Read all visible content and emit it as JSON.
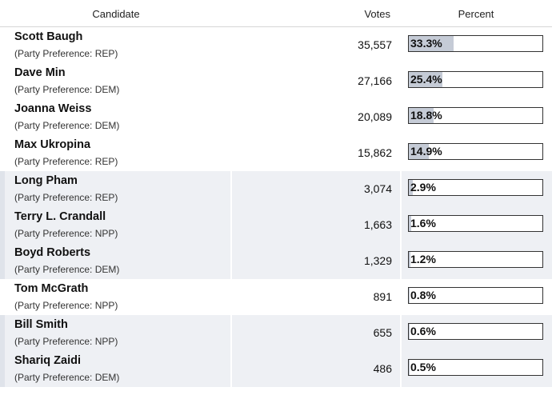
{
  "columns": {
    "candidate": "Candidate",
    "votes": "Votes",
    "percent": "Percent"
  },
  "rows": [
    {
      "name": "Scott Baugh",
      "party": "(Party Preference: REP)",
      "votes": "35,557",
      "percent": "33.3%",
      "share": 33.3,
      "shaded": false
    },
    {
      "name": "Dave Min",
      "party": "(Party Preference: DEM)",
      "votes": "27,166",
      "percent": "25.4%",
      "share": 25.4,
      "shaded": false
    },
    {
      "name": "Joanna Weiss",
      "party": "(Party Preference: DEM)",
      "votes": "20,089",
      "percent": "18.8%",
      "share": 18.8,
      "shaded": false
    },
    {
      "name": "Max Ukropina",
      "party": "(Party Preference: REP)",
      "votes": "15,862",
      "percent": "14.9%",
      "share": 14.9,
      "shaded": false
    },
    {
      "name": "Long Pham",
      "party": "(Party Preference: REP)",
      "votes": "3,074",
      "percent": "2.9%",
      "share": 2.9,
      "shaded": true
    },
    {
      "name": "Terry L. Crandall",
      "party": "(Party Preference: NPP)",
      "votes": "1,663",
      "percent": "1.6%",
      "share": 1.6,
      "shaded": true
    },
    {
      "name": "Boyd Roberts",
      "party": "(Party Preference: DEM)",
      "votes": "1,329",
      "percent": "1.2%",
      "share": 1.2,
      "shaded": true
    },
    {
      "name": "Tom McGrath",
      "party": "(Party Preference: NPP)",
      "votes": "891",
      "percent": "0.8%",
      "share": 0.8,
      "shaded": false
    },
    {
      "name": "Bill Smith",
      "party": "(Party Preference: NPP)",
      "votes": "655",
      "percent": "0.6%",
      "share": 0.6,
      "shaded": true
    },
    {
      "name": "Shariq Zaidi",
      "party": "(Party Preference: DEM)",
      "votes": "486",
      "percent": "0.5%",
      "share": 0.5,
      "shaded": true
    }
  ]
}
